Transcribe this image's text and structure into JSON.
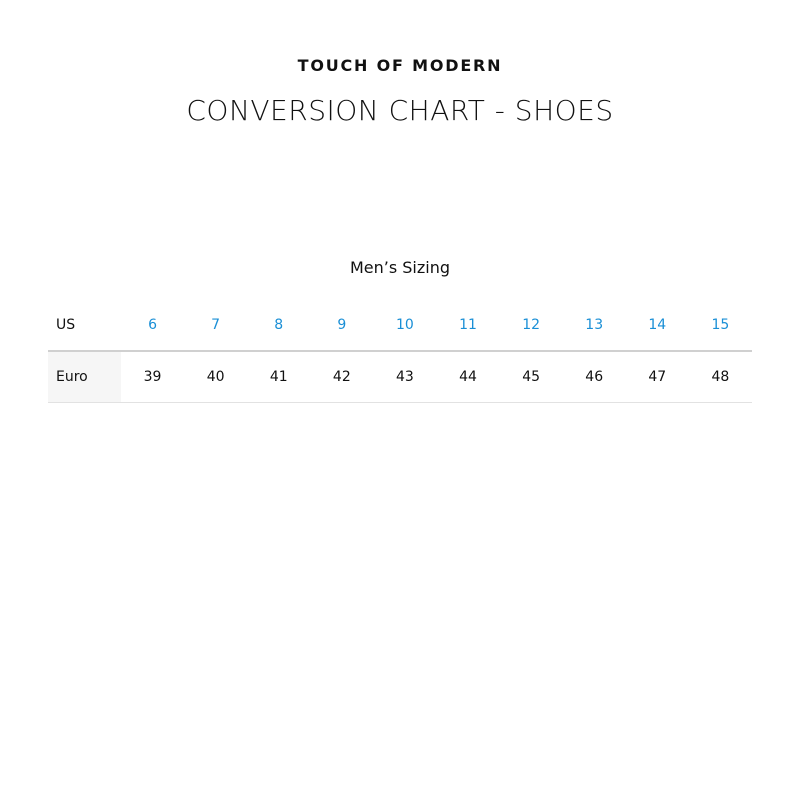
{
  "brand": "TOUCH OF MODERN",
  "title": "CONVERSION CHART - SHOES",
  "subtitle": "Men’s Sizing",
  "accent_color": "#1a8fd6",
  "table": {
    "us": {
      "label": "US",
      "values": [
        "6",
        "7",
        "8",
        "9",
        "10",
        "11",
        "12",
        "13",
        "14",
        "15"
      ]
    },
    "euro": {
      "label": "Euro",
      "values": [
        "39",
        "40",
        "41",
        "42",
        "43",
        "44",
        "45",
        "46",
        "47",
        "48"
      ]
    }
  }
}
